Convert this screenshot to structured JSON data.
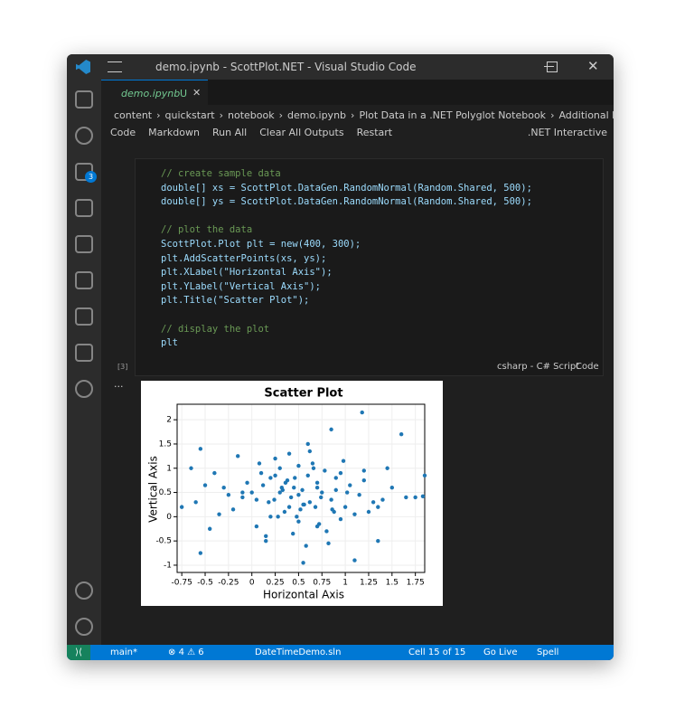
{
  "window": {
    "title": "demo.ipynb - ScottPlot.NET - Visual Studio Code"
  },
  "tab": {
    "name": "demo.ipynb",
    "status": "U"
  },
  "breadcrumbs": [
    "content",
    "quickstart",
    "notebook",
    "demo.ipynb",
    "Plot Data in a .NET Polyglot Notebook",
    "Additional Reso"
  ],
  "toolbar": [
    "Code",
    "Markdown",
    "Run All",
    "Clear All Outputs",
    "Restart",
    ".NET Interactive"
  ],
  "activity_badge": "3",
  "cell": {
    "code": [
      "// create sample data",
      "double[] xs = ScottPlot.DataGen.RandomNormal(Random.Shared, 500);",
      "double[] ys = ScottPlot.DataGen.RandomNormal(Random.Shared, 500);",
      "",
      "// plot the data",
      "ScottPlot.Plot plt = new(400, 300);",
      "plt.AddScatterPoints(xs, ys);",
      "plt.XLabel(\"Horizontal Axis\");",
      "plt.YLabel(\"Vertical Axis\");",
      "plt.Title(\"Scatter Plot\");",
      "",
      "// display the plot",
      "plt"
    ],
    "execution": "[3]",
    "language": "csharp - C# Script",
    "kind": "Code"
  },
  "status_bar": {
    "branch": "main*",
    "errors": "4",
    "warnings": "6",
    "solution": "DateTimeDemo.sln",
    "cell": "Cell 15 of 15",
    "live": "Go Live",
    "spell": "Spell"
  },
  "chart_data": {
    "type": "scatter",
    "title": "Scatter Plot",
    "x_label": "Horizontal Axis",
    "y_label": "Vertical Axis",
    "color": "#1f77b4",
    "grid": true,
    "xlim": [
      -0.8,
      1.85
    ],
    "ylim": [
      -1.15,
      2.32
    ],
    "xticks": [
      -0.75,
      -0.5,
      -0.25,
      0,
      0.25,
      0.5,
      0.75,
      1,
      1.25,
      1.5,
      1.75
    ],
    "yticks": [
      -1,
      -0.5,
      0,
      0.5,
      1,
      1.5,
      2
    ],
    "x": [
      1.18,
      1.6,
      0.85,
      -0.55,
      1.85,
      1.83,
      -0.75,
      0.55,
      1.35,
      -0.55,
      1.1,
      0.3,
      0.45,
      0.62,
      0.5,
      0.7,
      0.2,
      0.35,
      0.9,
      1.0,
      0.1,
      -0.1,
      -0.3,
      0.05,
      0.4,
      0.65,
      0.8,
      1.2,
      1.4,
      -0.2,
      0.55,
      0.75,
      0.25,
      0.95,
      1.05,
      0.15,
      -0.05,
      0.6,
      0.48,
      0.38,
      0.72,
      0.85,
      0.3,
      1.25,
      1.5,
      -0.4,
      -0.6,
      0.0,
      0.2,
      0.5,
      0.68,
      0.9,
      1.15,
      0.42,
      0.58,
      0.33,
      -0.15,
      0.12,
      0.78,
      1.3,
      -0.45,
      0.25,
      0.52,
      0.62,
      0.88,
      1.02,
      0.05,
      -0.25,
      0.44,
      0.7,
      0.98,
      1.1,
      0.18,
      0.36,
      0.56,
      0.82,
      -0.5,
      1.45,
      1.65,
      0.28,
      0.6,
      0.4,
      0.95,
      0.08,
      -0.35,
      0.74,
      0.5,
      1.2,
      0.15,
      0.66,
      0.32,
      0.86,
      1.35,
      -0.1,
      0.46,
      0.24,
      0.54,
      1.75,
      -0.65,
      0.7
    ],
    "y": [
      2.15,
      1.7,
      1.8,
      1.4,
      0.85,
      0.42,
      0.2,
      -0.95,
      -0.5,
      -0.75,
      -0.9,
      0.5,
      0.6,
      0.3,
      0.45,
      0.7,
      0.8,
      0.1,
      0.55,
      0.2,
      0.9,
      0.4,
      0.6,
      -0.2,
      1.3,
      1.1,
      -0.3,
      0.95,
      0.35,
      0.15,
      0.25,
      0.5,
      1.2,
      -0.05,
      0.65,
      -0.4,
      0.7,
      1.5,
      0.0,
      0.75,
      -0.15,
      0.35,
      1.0,
      0.1,
      0.6,
      0.9,
      0.3,
      0.5,
      0.0,
      1.05,
      0.2,
      0.8,
      0.45,
      0.4,
      -0.6,
      0.55,
      1.25,
      0.65,
      0.95,
      0.3,
      -0.25,
      0.85,
      0.15,
      1.35,
      0.1,
      0.5,
      0.35,
      0.45,
      -0.35,
      0.6,
      1.15,
      0.05,
      0.3,
      0.7,
      0.25,
      -0.55,
      0.65,
      1.0,
      0.4,
      0.0,
      0.85,
      0.2,
      0.9,
      1.1,
      0.05,
      0.4,
      -0.1,
      0.75,
      -0.5,
      1.0,
      0.6,
      0.15,
      0.2,
      0.5,
      0.8,
      0.35,
      0.55,
      0.4,
      1.0,
      -0.2
    ]
  }
}
